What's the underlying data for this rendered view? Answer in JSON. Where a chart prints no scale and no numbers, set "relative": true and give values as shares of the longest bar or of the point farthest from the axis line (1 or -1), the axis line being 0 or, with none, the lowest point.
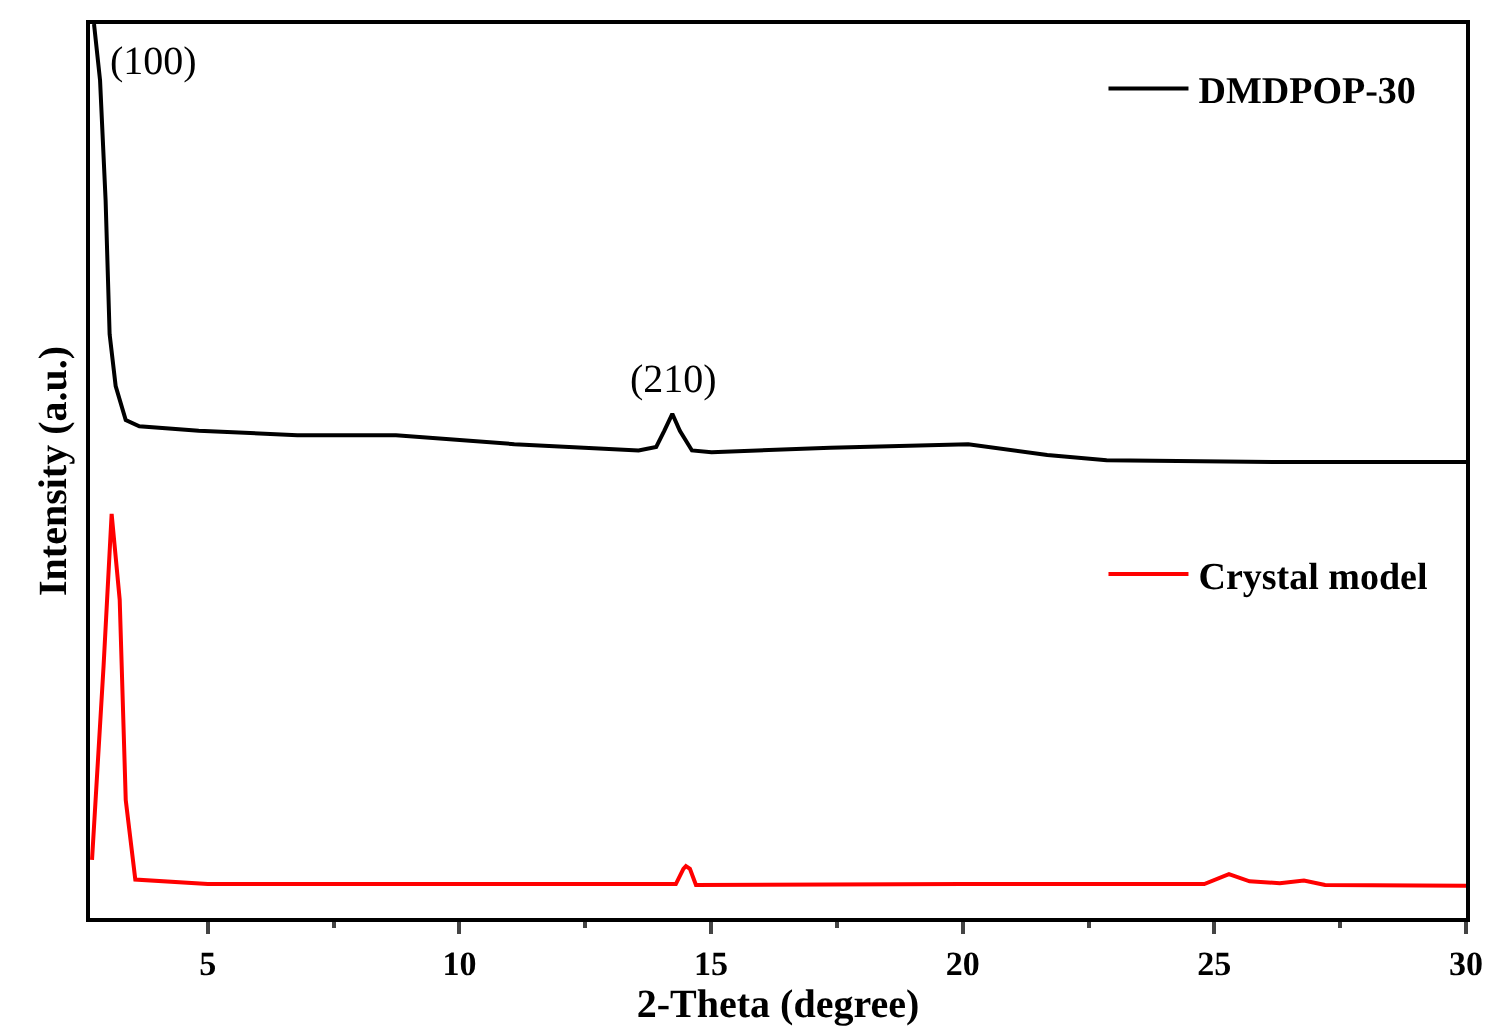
{
  "chart_data": {
    "type": "line",
    "relative": true,
    "xlabel": "2-Theta (degree)",
    "ylabel": "Intensity (a.u.)",
    "xlim": [
      2.66,
      30
    ],
    "xticks": [
      5,
      10,
      15,
      20,
      25,
      30
    ],
    "legend": "right",
    "marker": "none",
    "line_style": "solid",
    "annotations": [
      {
        "text": "(100)",
        "x": 2.74,
        "y": 1.0
      },
      {
        "text": "(210)",
        "x": 14.23,
        "y": 0.564
      }
    ],
    "series": [
      {
        "name": "DMDPOP-30",
        "color": "#000000",
        "x": [
          2.74,
          2.86,
          2.97,
          3.05,
          3.17,
          3.37,
          3.64,
          4.82,
          6.78,
          8.74,
          11.09,
          13.56,
          13.91,
          14.07,
          14.23,
          14.38,
          14.62,
          15.01,
          17.37,
          20.11,
          21.68,
          22.86,
          26.39,
          30
        ],
        "values": [
          1.0,
          0.937,
          0.803,
          0.653,
          0.595,
          0.557,
          0.55,
          0.545,
          0.54,
          0.54,
          0.53,
          0.523,
          0.527,
          0.545,
          0.564,
          0.545,
          0.523,
          0.521,
          0.526,
          0.53,
          0.518,
          0.512,
          0.51,
          0.51
        ]
      },
      {
        "name": "Crystal model",
        "color": "#ff0000",
        "x": [
          2.7,
          2.93,
          3.09,
          3.25,
          3.37,
          3.56,
          5,
          10,
          14.3,
          14.45,
          14.5,
          14.58,
          14.7,
          20,
          24.8,
          25.29,
          25.7,
          26.3,
          26.78,
          27.2,
          30
        ],
        "values": [
          0.065,
          0.282,
          0.452,
          0.356,
          0.132,
          0.043,
          0.038,
          0.038,
          0.038,
          0.055,
          0.058,
          0.055,
          0.037,
          0.038,
          0.038,
          0.049,
          0.041,
          0.039,
          0.042,
          0.037,
          0.036
        ]
      }
    ]
  }
}
